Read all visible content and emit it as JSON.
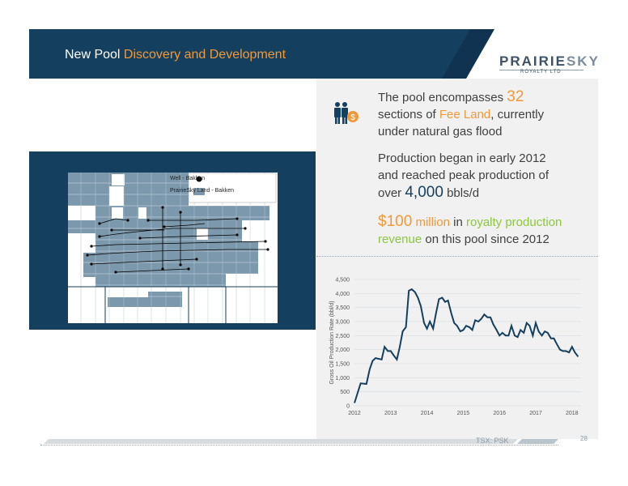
{
  "header": {
    "title_part1": "New Pool ",
    "title_part2": "Discovery and Development",
    "logo_word_a": "PRAIRIE",
    "logo_word_b": "SKY",
    "logo_sub": "ROYALTY LTD"
  },
  "bullets": {
    "b1_pre": "The pool encompasses ",
    "b1_num": "32",
    "b1_line2_pre": "sections of ",
    "b1_fee": "Fee Land",
    "b1_line2_post": ", currently",
    "b1_line3": "under natural gas flood",
    "b2_line1": "Production began in early 2012",
    "b2_line2": "and reached peak production of",
    "b2_line3_pre": "over ",
    "b2_num": "4,000",
    "b2_unit": " bbls/d",
    "b3_amount": "$100",
    "b3_million": " million",
    "b3_in": " in ",
    "b3_royalty": "royalty production",
    "b3_revenue": "revenue",
    "b3_post": " on this pool since 2012"
  },
  "map": {
    "legend_well": "Well - Bakken",
    "legend_land": "PrairieSky Land - Bakken"
  },
  "footer": {
    "ticker": "TSX: PSK",
    "page": "28"
  },
  "colors": {
    "navy": "#153f5e",
    "orange": "#f0993a",
    "green": "#8dc63f",
    "land": "#7b98ad"
  },
  "chart_data": {
    "type": "line",
    "ylabel": "Gross Oil Production Rate (bbl/d)",
    "xlabel": "",
    "ylim": [
      0,
      4500
    ],
    "xlim": [
      2012,
      2018.25
    ],
    "y_ticks": [
      "0",
      "500",
      "1,000",
      "1,500",
      "2,000",
      "2,500",
      "3,000",
      "3,500",
      "4,000",
      "4,500"
    ],
    "x_ticks": [
      "2012",
      "2013",
      "2014",
      "2015",
      "2016",
      "2017",
      "2018"
    ],
    "series": [
      {
        "x": [
          2012.0,
          2012.17,
          2012.33,
          2012.42,
          2012.5,
          2012.58,
          2012.75,
          2012.83,
          2012.92,
          2013.0,
          2013.08,
          2013.17,
          2013.25,
          2013.33,
          2013.42,
          2013.5,
          2013.58,
          2013.67,
          2013.75,
          2013.83,
          2013.92,
          2014.0,
          2014.08,
          2014.17,
          2014.25,
          2014.33,
          2014.42,
          2014.5,
          2014.58,
          2014.67,
          2014.75,
          2014.83,
          2014.92,
          2015.0,
          2015.08,
          2015.17,
          2015.25,
          2015.33,
          2015.42,
          2015.5,
          2015.58,
          2015.67,
          2015.75,
          2015.83,
          2015.92,
          2016.0,
          2016.08,
          2016.17,
          2016.25,
          2016.33,
          2016.42,
          2016.5,
          2016.58,
          2016.67,
          2016.75,
          2016.83,
          2016.92,
          2017.0,
          2017.08,
          2017.17,
          2017.25,
          2017.33,
          2017.42,
          2017.5,
          2017.58,
          2017.67,
          2017.75,
          2017.83,
          2017.92,
          2018.0,
          2018.08,
          2018.17
        ],
        "y": [
          100,
          800,
          780,
          1300,
          1600,
          1700,
          1650,
          2100,
          1950,
          1950,
          1800,
          1650,
          2100,
          2650,
          2800,
          4100,
          4150,
          4050,
          3850,
          3550,
          2950,
          2750,
          3000,
          2750,
          3300,
          3800,
          3850,
          3700,
          3750,
          3300,
          2950,
          2850,
          2650,
          2700,
          2850,
          2800,
          2700,
          3050,
          3000,
          3100,
          3250,
          3150,
          3150,
          2900,
          2700,
          2500,
          2600,
          2500,
          2500,
          2850,
          2500,
          2450,
          2700,
          2600,
          2950,
          2850,
          2500,
          2950,
          2650,
          2500,
          2650,
          2600,
          2400,
          2400,
          2200,
          2000,
          1950,
          1950,
          1900,
          2100,
          1900,
          1750
        ]
      }
    ]
  }
}
